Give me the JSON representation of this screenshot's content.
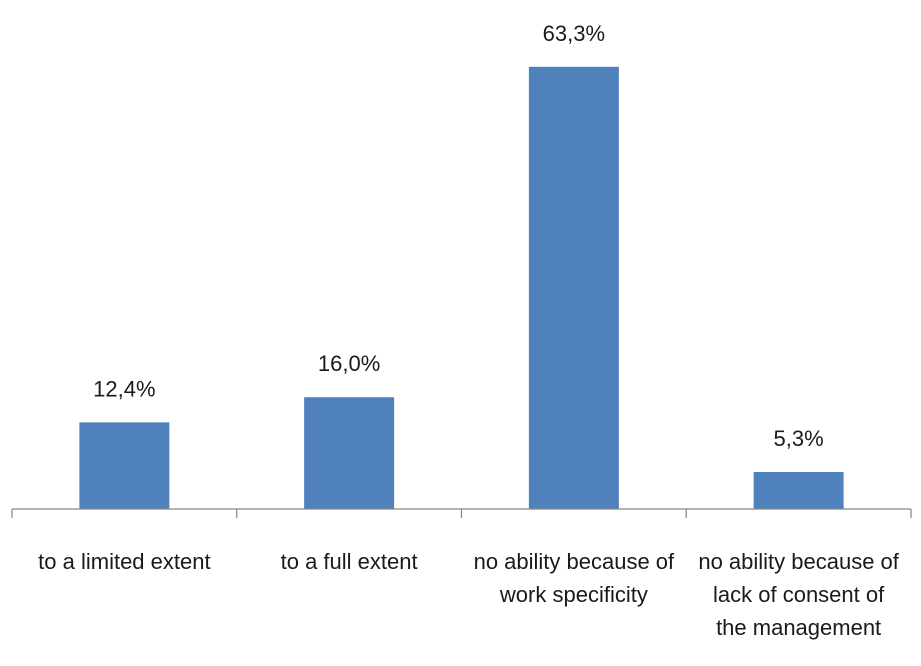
{
  "chart_data": {
    "type": "bar",
    "categories": [
      [
        "to a limited extent"
      ],
      [
        "to a full extent"
      ],
      [
        "no ability because of",
        "work specificity"
      ],
      [
        "no ability because of",
        "lack of consent of",
        "the management"
      ]
    ],
    "values": [
      12.4,
      16.0,
      63.3,
      5.3
    ],
    "data_labels": [
      "12,4%",
      "16,0%",
      "63,3%",
      "5,3%"
    ],
    "ylim": [
      0,
      70
    ],
    "grid": false,
    "legend": "none",
    "bar_color": "#4F81BD",
    "axis_color": "#868686"
  }
}
